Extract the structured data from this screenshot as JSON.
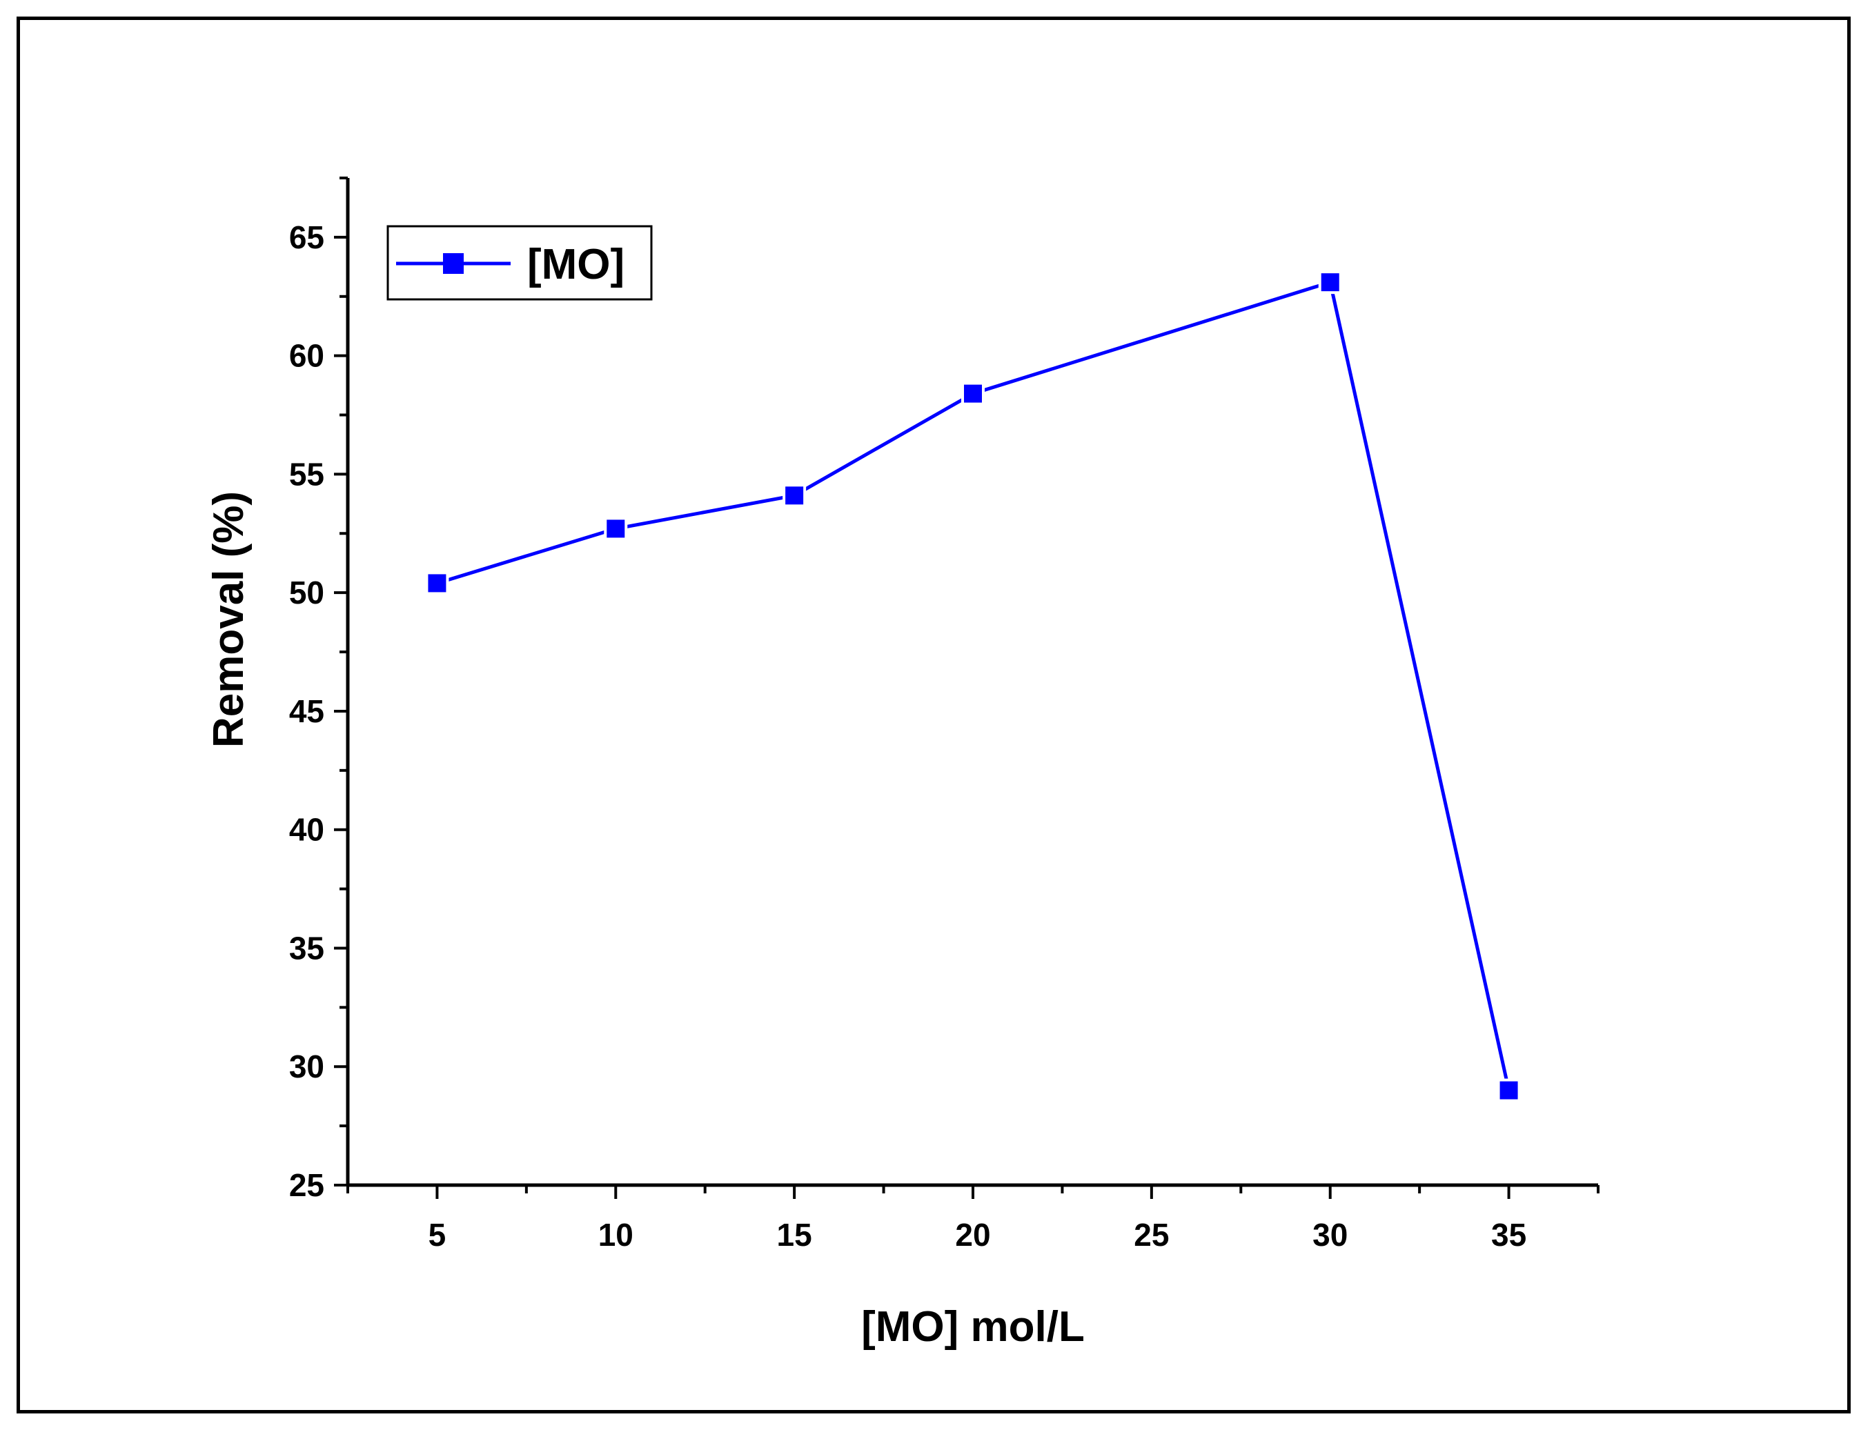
{
  "chart_data": {
    "type": "line",
    "title": "",
    "xlabel": "[MO] mol/L",
    "ylabel": "Removal (%)",
    "x": [
      5,
      10,
      15,
      20,
      30,
      35
    ],
    "series": [
      {
        "name": "[MO]",
        "values": [
          50.4,
          52.7,
          54.1,
          58.4,
          63.1,
          29.0
        ],
        "color": "#0000ff",
        "marker": "square"
      }
    ],
    "xticks": [
      5,
      10,
      15,
      20,
      25,
      30,
      35
    ],
    "yticks": [
      25,
      30,
      35,
      40,
      45,
      50,
      55,
      60,
      65
    ],
    "xlim": [
      2.5,
      37.5
    ],
    "ylim": [
      25,
      67.5
    ],
    "grid": false,
    "legend_position": "top-left"
  }
}
